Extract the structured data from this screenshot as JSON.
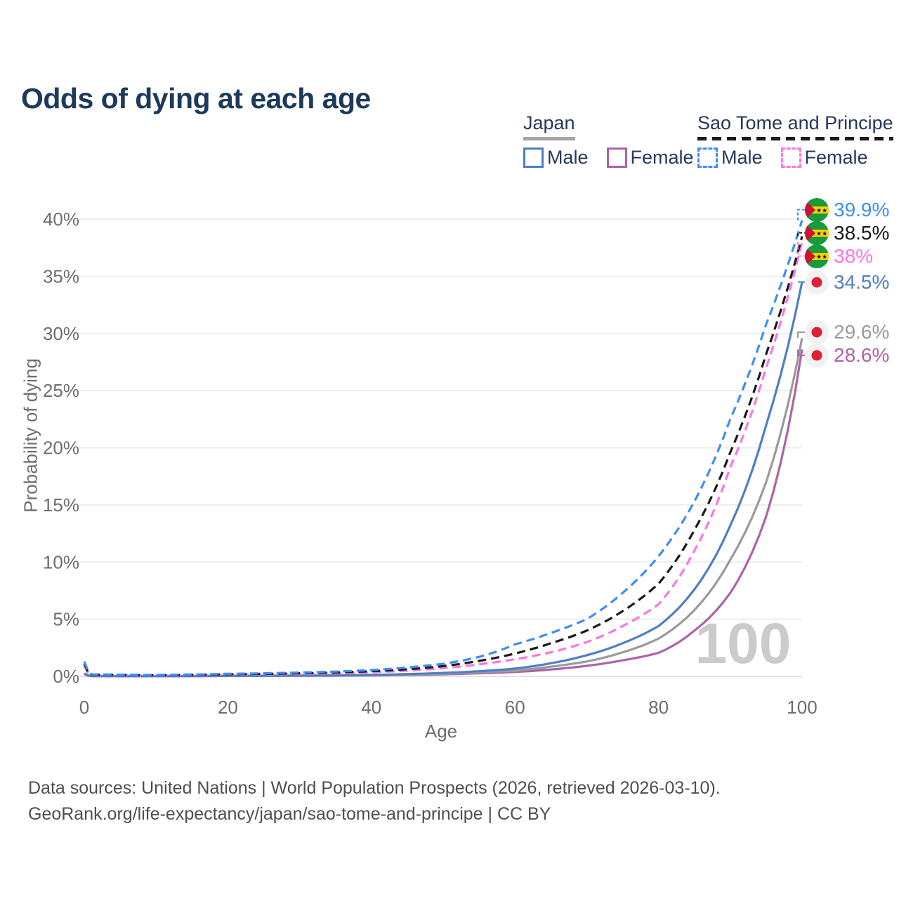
{
  "header": {
    "title": "Odds of dying at each age"
  },
  "legend": {
    "japan": {
      "label": "Japan",
      "male_label": "Male",
      "female_label": "Female",
      "line_color": "#9a9a9a",
      "male_color": "#4e7fc4",
      "female_color": "#af62a8",
      "style": "solid"
    },
    "sao_tome": {
      "label": "Sao Tome and Principe",
      "male_label": "Male",
      "female_label": "Female",
      "line_color": "#1a1a1a",
      "male_color": "#3f8df5",
      "female_color": "#fc75e4",
      "style": "dashed"
    }
  },
  "chart_data": {
    "type": "line",
    "title": "Odds of dying at each age",
    "xlabel": "Age",
    "ylabel": "Probability of dying",
    "xlim": [
      0,
      100
    ],
    "ylim": [
      0,
      40
    ],
    "x_ticks": [
      0,
      20,
      40,
      60,
      80,
      100
    ],
    "y_ticks": [
      0,
      5,
      10,
      15,
      20,
      25,
      30,
      35,
      40
    ],
    "y_tick_suffix": "%",
    "grid": "horizontal",
    "age_counter": "100",
    "ages": [
      0,
      1,
      5,
      10,
      15,
      20,
      25,
      30,
      35,
      40,
      45,
      50,
      55,
      60,
      65,
      70,
      75,
      80,
      85,
      90,
      95,
      100
    ],
    "series": [
      {
        "name": "Sao Tome and Principe — Male",
        "country": "sao_tome",
        "sex": "male",
        "color": "#3f8df5",
        "dashed": true,
        "end_label": "39.9%",
        "values": [
          1.3,
          0.18,
          0.15,
          0.12,
          0.16,
          0.22,
          0.27,
          0.33,
          0.42,
          0.55,
          0.78,
          1.1,
          1.7,
          2.8,
          3.8,
          5.0,
          7.3,
          10.5,
          15.3,
          22.5,
          30.8,
          39.9
        ]
      },
      {
        "name": "Sao Tome and Principe — Both sexes",
        "country": "sao_tome",
        "sex": "total",
        "color": "#1a1a1a",
        "dashed": true,
        "end_label": "38.5%",
        "values": [
          1.1,
          0.15,
          0.12,
          0.1,
          0.13,
          0.18,
          0.22,
          0.27,
          0.34,
          0.45,
          0.62,
          0.9,
          1.35,
          2.0,
          2.9,
          4.0,
          5.7,
          8.1,
          12.8,
          19.6,
          28.2,
          38.5
        ]
      },
      {
        "name": "Sao Tome and Principe — Female",
        "country": "sao_tome",
        "sex": "female",
        "color": "#fc75e4",
        "dashed": true,
        "end_label": "38%",
        "values": [
          0.95,
          0.12,
          0.1,
          0.08,
          0.1,
          0.14,
          0.17,
          0.21,
          0.27,
          0.36,
          0.5,
          0.72,
          1.05,
          1.5,
          2.1,
          3.0,
          4.4,
          6.3,
          11.0,
          18.3,
          27.0,
          38.0
        ]
      },
      {
        "name": "Japan — Male",
        "country": "japan",
        "sex": "male",
        "color": "#4e7fc4",
        "dashed": false,
        "end_label": "34.5%",
        "values": [
          0.25,
          0.03,
          0.02,
          0.015,
          0.03,
          0.05,
          0.06,
          0.07,
          0.09,
          0.13,
          0.2,
          0.3,
          0.45,
          0.68,
          1.15,
          1.85,
          2.9,
          4.4,
          7.6,
          13.2,
          22.0,
          34.5
        ]
      },
      {
        "name": "Japan — Both sexes",
        "country": "japan",
        "sex": "total",
        "color": "#9a9a9a",
        "dashed": false,
        "end_label": "29.6%",
        "values": [
          0.22,
          0.025,
          0.017,
          0.012,
          0.025,
          0.04,
          0.05,
          0.06,
          0.075,
          0.1,
          0.15,
          0.23,
          0.35,
          0.5,
          0.85,
          1.3,
          2.1,
          3.3,
          5.8,
          10.2,
          17.0,
          29.6
        ]
      },
      {
        "name": "Japan — Female",
        "country": "japan",
        "sex": "female",
        "color": "#af62a8",
        "dashed": false,
        "end_label": "28.6%",
        "values": [
          0.2,
          0.02,
          0.015,
          0.01,
          0.02,
          0.03,
          0.04,
          0.05,
          0.06,
          0.08,
          0.12,
          0.18,
          0.27,
          0.38,
          0.6,
          0.92,
          1.4,
          2.05,
          4.0,
          7.3,
          14.0,
          28.6
        ]
      }
    ],
    "flags": {
      "japan": {
        "bg": "#f1f1f1",
        "dot": "#dd2033"
      },
      "sao_tome": {
        "green": "#199a3c",
        "yellow": "#ffd201",
        "red": "#d21034",
        "star": "#111111"
      }
    },
    "colors": {
      "grid": "#ededed",
      "zero_line": "#e2e2e2",
      "tick_text": "#6e6e6e",
      "watermark": "#cbcbcb"
    }
  },
  "footer": {
    "line1": "Data sources: United Nations | World Population Prospects (2026, retrieved 2026-03-10).",
    "line2": "GeoRank.org/life-expectancy/japan/sao-tome-and-principe | CC BY"
  }
}
